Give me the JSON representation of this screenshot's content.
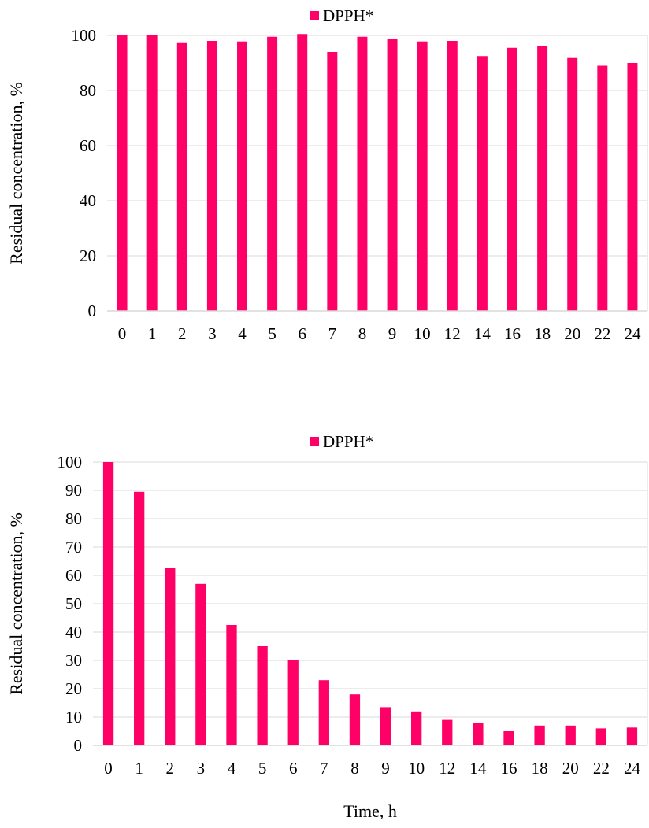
{
  "chart_data": [
    {
      "type": "bar",
      "categories": [
        "0",
        "1",
        "2",
        "3",
        "4",
        "5",
        "6",
        "7",
        "8",
        "9",
        "10",
        "12",
        "14",
        "16",
        "18",
        "20",
        "22",
        "24"
      ],
      "series": [
        {
          "name": "DPPH*",
          "color": "#ff0066",
          "values": [
            100,
            100,
            97.5,
            98,
            97.8,
            99.5,
            100.5,
            94,
            99.5,
            98.8,
            97.8,
            98,
            92.5,
            95.5,
            96,
            91.8,
            89,
            90
          ]
        }
      ],
      "title": "",
      "xlabel": "",
      "ylabel": "Residual concentration, %",
      "ylim": [
        0,
        100
      ],
      "yticks": [
        0,
        20,
        40,
        60,
        80,
        100
      ],
      "grid": true,
      "legend": "top-center"
    },
    {
      "type": "bar",
      "categories": [
        "0",
        "1",
        "2",
        "3",
        "4",
        "5",
        "6",
        "7",
        "8",
        "9",
        "10",
        "12",
        "14",
        "16",
        "18",
        "20",
        "22",
        "24"
      ],
      "series": [
        {
          "name": "DPPH*",
          "color": "#ff0066",
          "values": [
            100,
            89.5,
            62.5,
            57,
            42.5,
            35,
            30,
            23,
            18,
            13.5,
            12,
            9,
            8,
            5,
            7,
            7,
            6,
            6.3
          ]
        }
      ],
      "title": "",
      "xlabel": "Time, h",
      "ylabel": "Residual concentration, %",
      "ylim": [
        0,
        100
      ],
      "yticks": [
        0,
        10,
        20,
        30,
        40,
        50,
        60,
        70,
        80,
        90,
        100
      ],
      "grid": true,
      "legend": "top-center"
    }
  ]
}
